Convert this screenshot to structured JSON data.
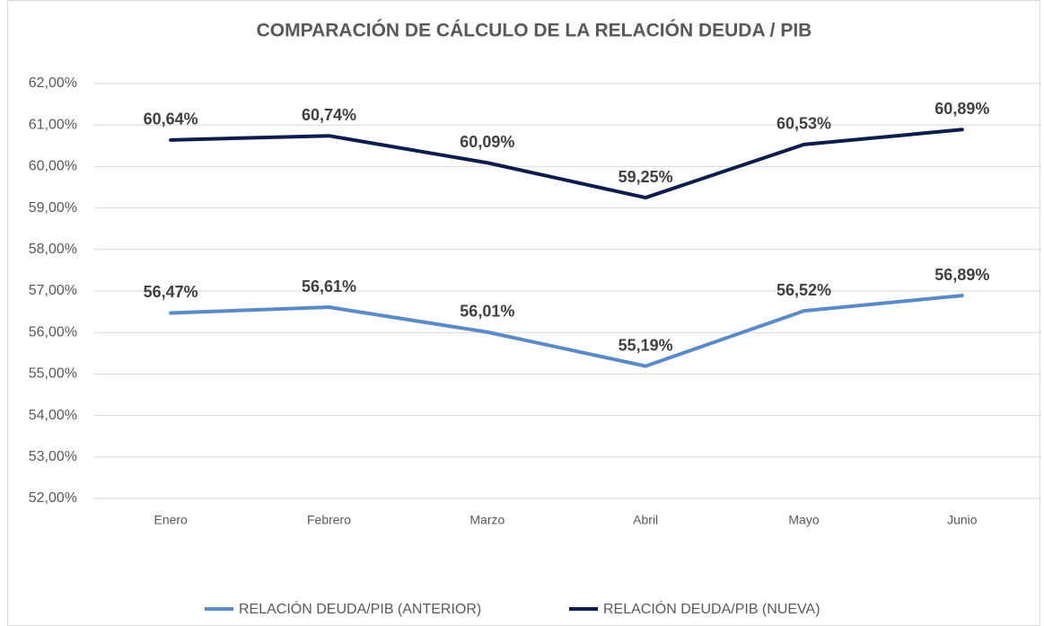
{
  "chart_data": {
    "type": "line",
    "title": "COMPARACIÓN DE CÁLCULO DE LA RELACIÓN DEUDA / PIB",
    "categories": [
      "Enero",
      "Febrero",
      "Marzo",
      "Abril",
      "Mayo",
      "Junio"
    ],
    "series": [
      {
        "name": "RELACIÓN DEUDA/PIB (ANTERIOR)",
        "color": "#5b8bc7",
        "values": [
          56.47,
          56.61,
          56.01,
          55.19,
          56.52,
          56.89
        ],
        "value_labels": [
          "56,47%",
          "56,61%",
          "56,01%",
          "55,19%",
          "56,52%",
          "56,89%"
        ]
      },
      {
        "name": "RELACIÓN DEUDA/PIB (NUEVA)",
        "color": "#0d1c4d",
        "values": [
          60.64,
          60.74,
          60.09,
          59.25,
          60.53,
          60.89
        ],
        "value_labels": [
          "60,64%",
          "60,74%",
          "60,09%",
          "59,25%",
          "60,53%",
          "60,89%"
        ]
      }
    ],
    "ylim": [
      52,
      62
    ],
    "yticks": [
      {
        "value": 52,
        "label": "52,00%"
      },
      {
        "value": 53,
        "label": "53,00%"
      },
      {
        "value": 54,
        "label": "54,00%"
      },
      {
        "value": 55,
        "label": "55,00%"
      },
      {
        "value": 56,
        "label": "56,00%"
      },
      {
        "value": 57,
        "label": "57,00%"
      },
      {
        "value": 58,
        "label": "58,00%"
      },
      {
        "value": 59,
        "label": "59,00%"
      },
      {
        "value": 60,
        "label": "60,00%"
      },
      {
        "value": 61,
        "label": "61,00%"
      },
      {
        "value": 62,
        "label": "62,00%"
      }
    ],
    "grid": true,
    "legend": "bottom"
  }
}
